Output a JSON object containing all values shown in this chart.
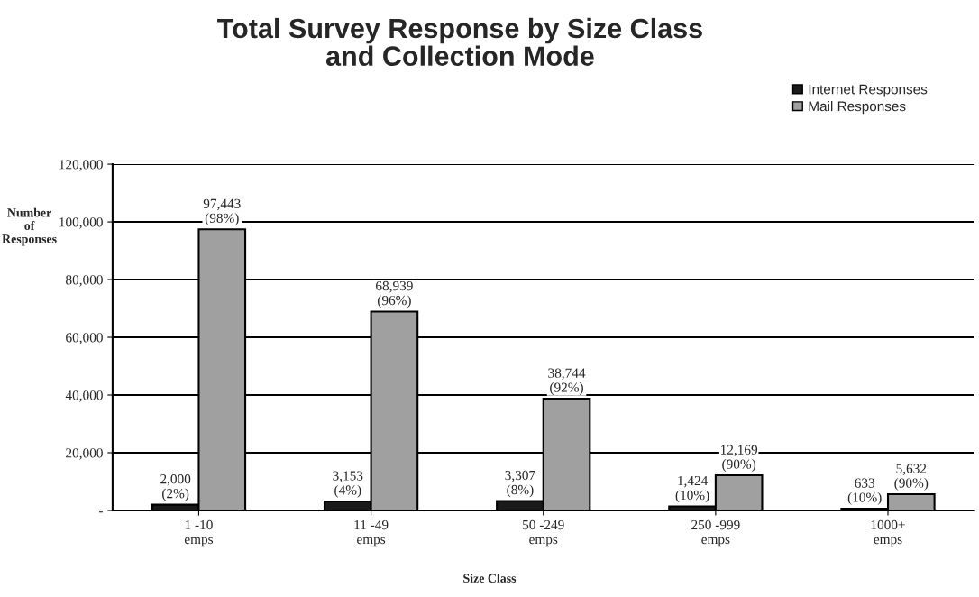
{
  "chart_data": {
    "type": "bar",
    "title": "Total Survey Response by Size Class\nand Collection Mode",
    "xlabel": "Size Class",
    "ylabel": "Number of Responses",
    "categories": [
      "1 -10\nemps",
      "11 -49\nemps",
      "50 -249\nemps",
      "250 -999\nemps",
      "1000+\nemps"
    ],
    "series": [
      {
        "name": "Internet Responses",
        "color": "#1a1a1a",
        "values": [
          2000,
          3153,
          3307,
          1424,
          633
        ],
        "value_labels": [
          "2,000\n(2%)",
          "3,153\n(4%)",
          "3,307\n(8%)",
          "1,424\n(10%)",
          "633\n(10%)"
        ]
      },
      {
        "name": "Mail Responses",
        "color": "#a0a0a0",
        "values": [
          97443,
          68939,
          38744,
          12169,
          5632
        ],
        "value_labels": [
          "97,443\n(98%)",
          "68,939\n(96%)",
          "38,744\n(92%)",
          "12,169\n(90%)",
          "5,632\n(90%)"
        ]
      }
    ],
    "ylim": [
      0,
      120000
    ],
    "yticks": [
      {
        "value": 0,
        "label": "-"
      },
      {
        "value": 20000,
        "label": "20,000"
      },
      {
        "value": 40000,
        "label": "40,000"
      },
      {
        "value": 60000,
        "label": "60,000"
      },
      {
        "value": 80000,
        "label": "80,000"
      },
      {
        "value": 100000,
        "label": "100,000"
      },
      {
        "value": 120000,
        "label": "120,000"
      }
    ],
    "grid": "y",
    "legend": "top right"
  }
}
